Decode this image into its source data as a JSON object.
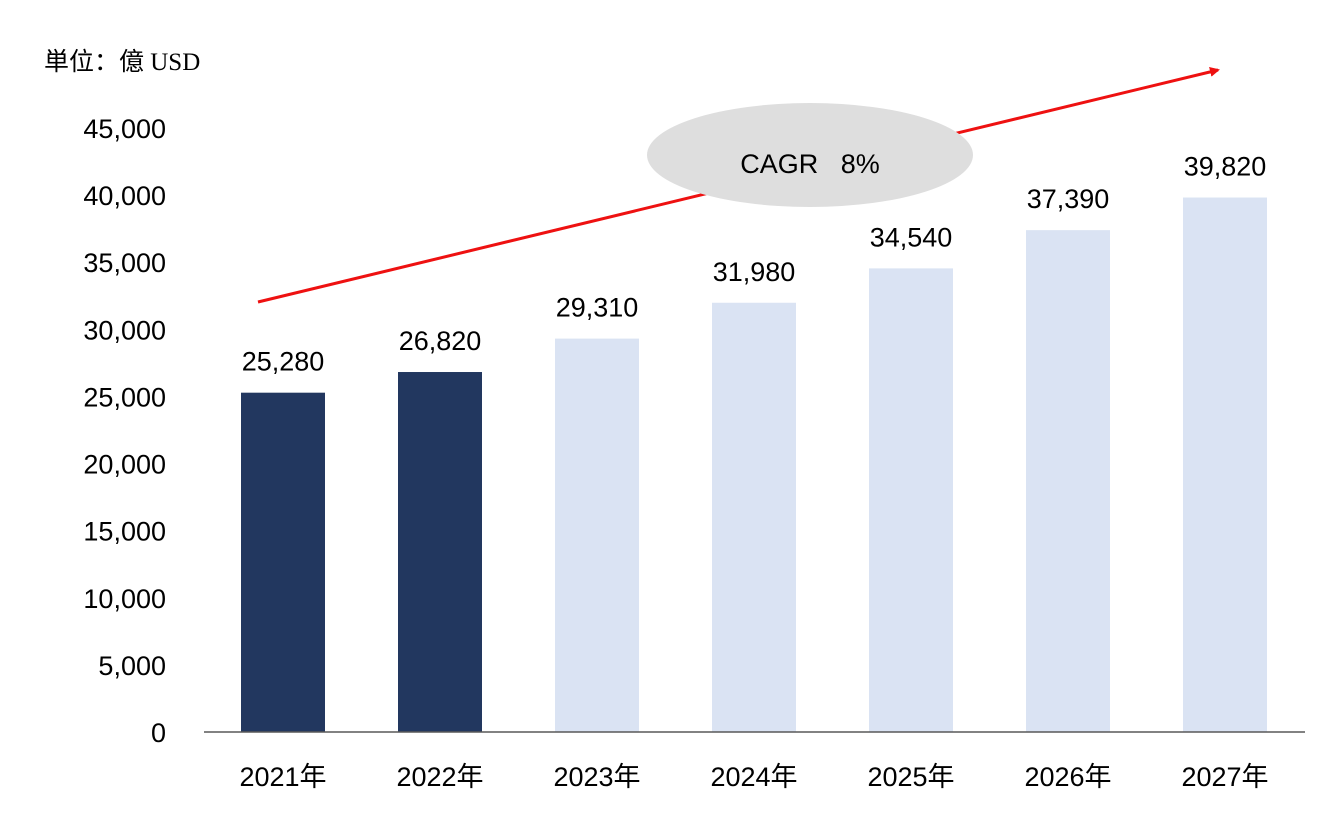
{
  "unit_label": "単位：億 USD",
  "cagr_label": "CAGR   8%",
  "colors": {
    "actual": "#22375F",
    "forecast": "#DAE3F3",
    "arrow": "#EE1111",
    "ellipse": "#DEDEDE",
    "axis": "#595959",
    "text": "#000000"
  },
  "chart_data": {
    "type": "bar",
    "title": "",
    "xlabel": "",
    "ylabel": "単位：億 USD",
    "categories": [
      "2021年",
      "2022年",
      "2023年",
      "2024年",
      "2025年",
      "2026年",
      "2027年"
    ],
    "values": [
      25280,
      26820,
      29310,
      31980,
      34540,
      37390,
      39820
    ],
    "value_labels": [
      "25,280",
      "26,820",
      "29,310",
      "31,980",
      "34,540",
      "37,390",
      "39,820"
    ],
    "bar_kind": [
      "actual",
      "actual",
      "forecast",
      "forecast",
      "forecast",
      "forecast",
      "forecast"
    ],
    "ylim": [
      0,
      45000
    ],
    "yticks": [
      0,
      5000,
      10000,
      15000,
      20000,
      25000,
      30000,
      35000,
      40000,
      45000
    ],
    "ytick_labels": [
      "0",
      "5,000",
      "10,000",
      "15,000",
      "20,000",
      "25,000",
      "30,000",
      "35,000",
      "40,000",
      "45,000"
    ],
    "grid": false,
    "legend": "none",
    "annotation": "CAGR   8%"
  }
}
